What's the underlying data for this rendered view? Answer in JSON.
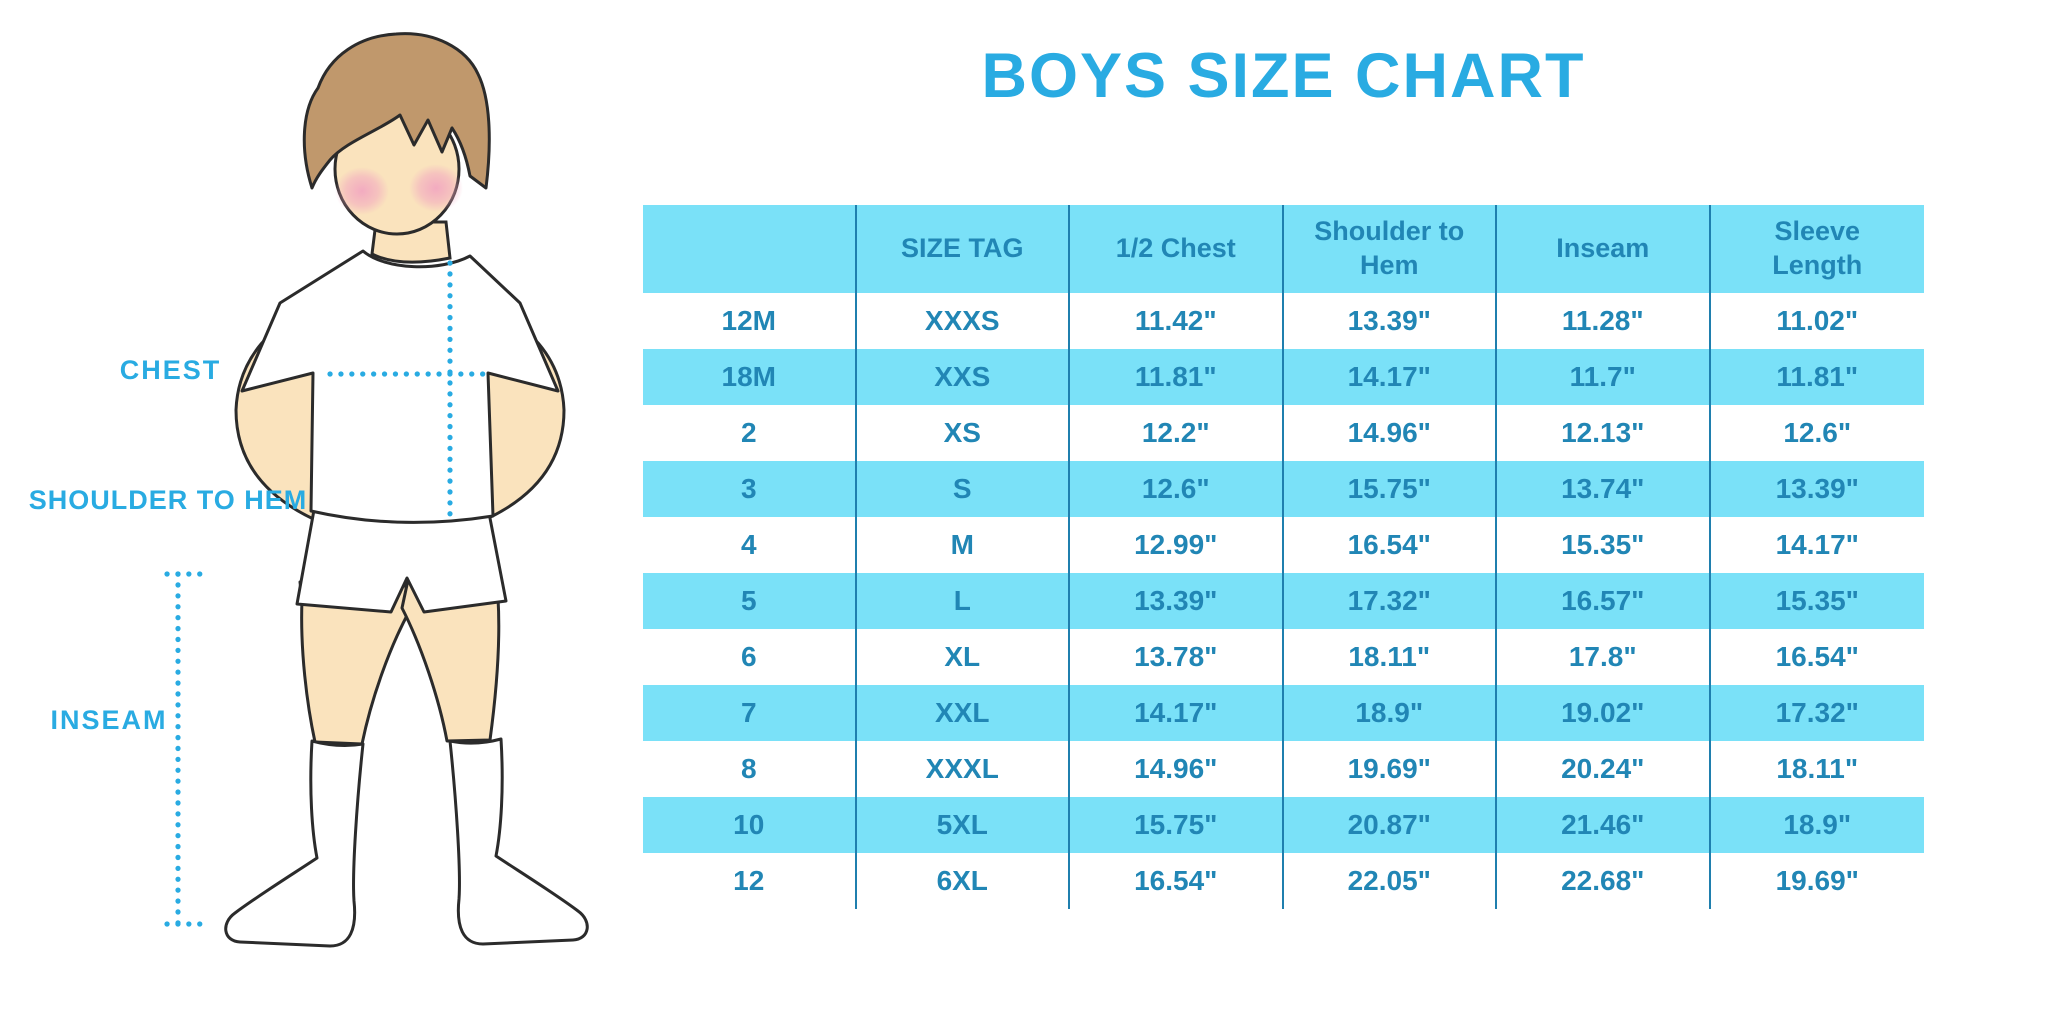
{
  "page": {
    "title": "BOYS SIZE CHART"
  },
  "figure": {
    "description": "Illustration of a boy in a white t-shirt, shorts and knee socks with dotted measurement guide lines",
    "labels": {
      "chest": "CHEST",
      "shoulder_to_hem": "SHOULDER TO HEM",
      "inseam": "INSEAM"
    }
  },
  "chart_data": {
    "type": "table",
    "title": "BOYS SIZE CHART",
    "columns": [
      "",
      "SIZE TAG",
      "1/2 Chest",
      "Shoulder to Hem",
      "Inseam",
      "Sleeve Length"
    ],
    "rows": [
      [
        "12M",
        "XXXS",
        "11.42\"",
        "13.39\"",
        "11.28\"",
        "11.02\""
      ],
      [
        "18M",
        "XXS",
        "11.81\"",
        "14.17\"",
        "11.7\"",
        "11.81\""
      ],
      [
        "2",
        "XS",
        "12.2\"",
        "14.96\"",
        "12.13\"",
        "12.6\""
      ],
      [
        "3",
        "S",
        "12.6\"",
        "15.75\"",
        "13.74\"",
        "13.39\""
      ],
      [
        "4",
        "M",
        "12.99\"",
        "16.54\"",
        "15.35\"",
        "14.17\""
      ],
      [
        "5",
        "L",
        "13.39\"",
        "17.32\"",
        "16.57\"",
        "15.35\""
      ],
      [
        "6",
        "XL",
        "13.78\"",
        "18.11\"",
        "17.8\"",
        "16.54\""
      ],
      [
        "7",
        "XXL",
        "14.17\"",
        "18.9\"",
        "19.02\"",
        "17.32\""
      ],
      [
        "8",
        "XXXL",
        "14.96\"",
        "19.69\"",
        "20.24\"",
        "18.11\""
      ],
      [
        "10",
        "5XL",
        "15.75\"",
        "20.87\"",
        "21.46\"",
        "18.9\""
      ],
      [
        "12",
        "6XL",
        "16.54\"",
        "22.05\"",
        "22.68\"",
        "19.69\""
      ]
    ],
    "layout": {
      "striped_rows": "alternating white and light blue",
      "grid": "vertical separators only"
    }
  },
  "colors": {
    "accent_blue": "#29ABE2",
    "table_fill": "#7AE1F8",
    "table_text": "#2186B5",
    "grid_line": "#1F7FAE",
    "skin": "#FAE3BD",
    "hair": "#C0986C",
    "blush": "#F2A8C0",
    "outline": "#2B2B2B"
  }
}
